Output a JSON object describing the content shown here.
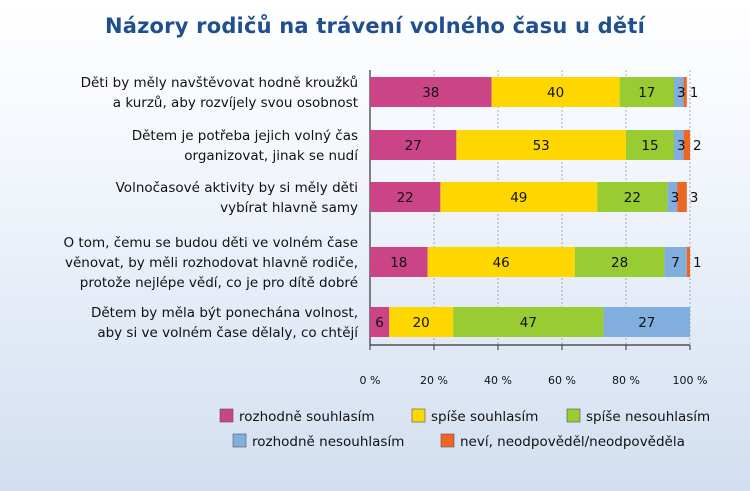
{
  "chart_data": {
    "type": "bar",
    "orientation": "horizontal-stacked-percent",
    "title": "Názory rodičů na trávení volného času u dětí",
    "categories": [
      [
        "Děti by měly navštěvovat hodně kroužků",
        "a kurzů, aby rozvíjely svou osobnost"
      ],
      [
        "Dětem je potřeba jejich volný čas",
        "organizovat, jinak se nudí"
      ],
      [
        "Volnočasové aktivity by si měly děti",
        "vybírat hlavně samy"
      ],
      [
        "O tom, čemu se budou děti ve volném čase",
        "věnovat, by měli rozhodovat hlavně rodiče,",
        "protože nejlépe vědí, co je pro dítě dobré"
      ],
      [
        "Dětem by měla být ponechána volnost,",
        "aby si ve volném čase dělaly, co chtějí"
      ]
    ],
    "series": [
      {
        "name": "rozhodně souhlasím",
        "color": "#cc4488",
        "values": [
          38,
          27,
          22,
          18,
          6
        ]
      },
      {
        "name": "spíše souhlasím",
        "color": "#ffd700",
        "values": [
          40,
          53,
          49,
          46,
          20
        ]
      },
      {
        "name": "spíše nesouhlasím",
        "color": "#99cc33",
        "values": [
          17,
          15,
          22,
          28,
          47
        ]
      },
      {
        "name": "rozhodně nesouhlasím",
        "color": "#80aede",
        "values": [
          3,
          3,
          3,
          7,
          27
        ]
      },
      {
        "name": "neví, neodpověděl/neodpověděla",
        "color": "#ee6622",
        "values": [
          1,
          2,
          3,
          1,
          0
        ]
      }
    ],
    "xticks": [
      "0 %",
      "20 %",
      "40 %",
      "60 %",
      "80 %",
      "100 %"
    ],
    "xlim": [
      0,
      100
    ],
    "legend_position": "bottom",
    "grid": true
  }
}
